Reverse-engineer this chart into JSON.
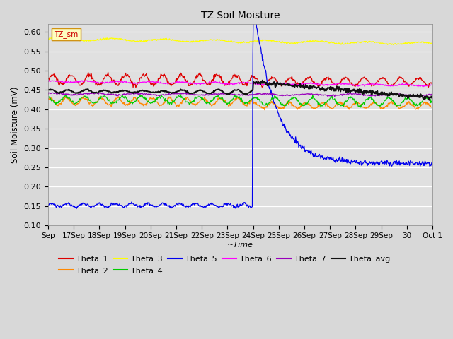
{
  "title": "TZ Soil Moisture",
  "ylabel": "Soil Moisture (mV)",
  "xlabel_italic": "~Time",
  "legend_label": "TZ_sm",
  "ylim": [
    0.1,
    0.62
  ],
  "xlim": [
    0,
    15
  ],
  "yticks": [
    0.1,
    0.15,
    0.2,
    0.25,
    0.3,
    0.35,
    0.4,
    0.45,
    0.5,
    0.55,
    0.6
  ],
  "xtick_positions": [
    0,
    1,
    2,
    3,
    4,
    5,
    6,
    7,
    8,
    9,
    10,
    11,
    12,
    13,
    14,
    15
  ],
  "xtick_labels": [
    "Sep",
    "17Sep",
    "18Sep",
    "19Sep",
    "20Sep",
    "21Sep",
    "22Sep",
    "23Sep",
    "24Sep",
    "25Sep",
    "26Sep",
    "27Sep",
    "28Sep",
    "29Sep",
    "30",
    "Oct 1"
  ],
  "colors": {
    "Theta_1": "#dd0000",
    "Theta_2": "#ff8800",
    "Theta_3": "#ffff00",
    "Theta_4": "#00cc00",
    "Theta_5": "#0000ee",
    "Theta_6": "#ff00ff",
    "Theta_7": "#9900bb",
    "Theta_avg": "#111111"
  },
  "spike_day": 8,
  "seed": 10,
  "fig_bg": "#d8d8d8",
  "ax_bg": "#e0e0e0"
}
